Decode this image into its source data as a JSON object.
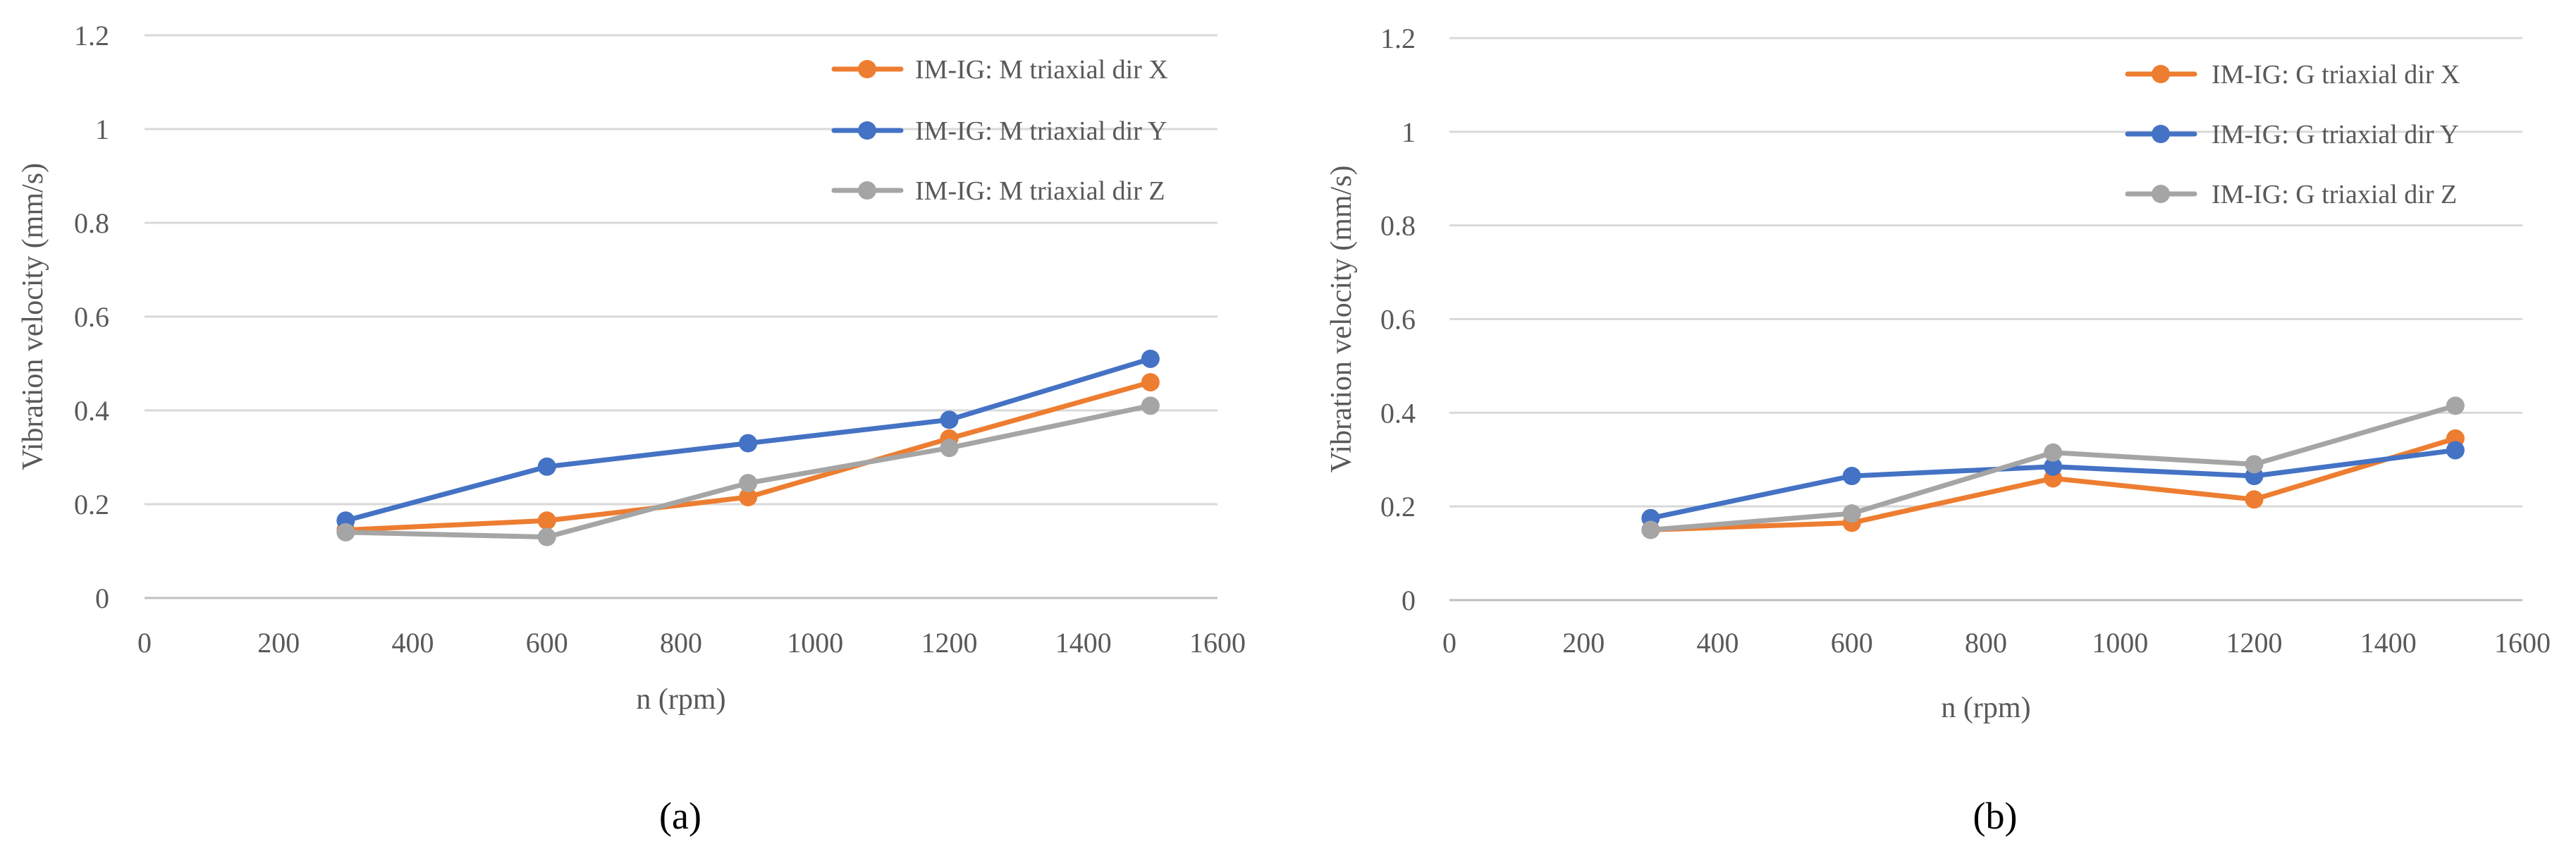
{
  "chart_data": [
    {
      "type": "line",
      "panel_label": "(a)",
      "xlabel": "n (rpm)",
      "ylabel": "Vibration velocity (mm/s)",
      "xlim": [
        0,
        1600
      ],
      "ylim": [
        0,
        1.2
      ],
      "x_ticks": [
        0,
        200,
        400,
        600,
        800,
        1000,
        1200,
        1400,
        1600
      ],
      "y_ticks": [
        0,
        0.2,
        0.4,
        0.6,
        0.8,
        1,
        1.2
      ],
      "y_tick_labels": [
        "0",
        "0.2",
        "0.4",
        "0.6",
        "0.8",
        "1",
        "1.2"
      ],
      "grid": true,
      "legend_position": "top-right",
      "x": [
        300,
        600,
        900,
        1200,
        1500
      ],
      "series": [
        {
          "name": "IM-IG: M triaxial dir X",
          "color": "#ED7D31",
          "values": [
            0.145,
            0.165,
            0.215,
            0.34,
            0.46
          ]
        },
        {
          "name": "IM-IG: M triaxial dir Y",
          "color": "#4472C4",
          "values": [
            0.165,
            0.28,
            0.33,
            0.38,
            0.51
          ]
        },
        {
          "name": "IM-IG: M triaxial dir Z",
          "color": "#A5A5A5",
          "values": [
            0.14,
            0.13,
            0.245,
            0.32,
            0.41
          ]
        }
      ]
    },
    {
      "type": "line",
      "panel_label": "(b)",
      "xlabel": "n (rpm)",
      "ylabel": "Vibration velocity (mm/s)",
      "xlim": [
        0,
        1600
      ],
      "ylim": [
        0,
        1.2
      ],
      "x_ticks": [
        0,
        200,
        400,
        600,
        800,
        1000,
        1200,
        1400,
        1600
      ],
      "y_ticks": [
        0,
        0.2,
        0.4,
        0.6,
        0.8,
        1,
        1.2
      ],
      "y_tick_labels": [
        "0",
        "0.2",
        "0.4",
        "0.6",
        "0.8",
        "1",
        "1.2"
      ],
      "grid": true,
      "legend_position": "top-right",
      "x": [
        300,
        600,
        900,
        1200,
        1500
      ],
      "series": [
        {
          "name": "IM-IG: G triaxial dir X",
          "color": "#ED7D31",
          "values": [
            0.15,
            0.165,
            0.26,
            0.215,
            0.345
          ]
        },
        {
          "name": "IM-IG: G triaxial dir Y",
          "color": "#4472C4",
          "values": [
            0.175,
            0.265,
            0.285,
            0.265,
            0.32
          ]
        },
        {
          "name": "IM-IG: G triaxial dir Z",
          "color": "#A5A5A5",
          "values": [
            0.15,
            0.185,
            0.315,
            0.29,
            0.415
          ]
        }
      ]
    }
  ]
}
